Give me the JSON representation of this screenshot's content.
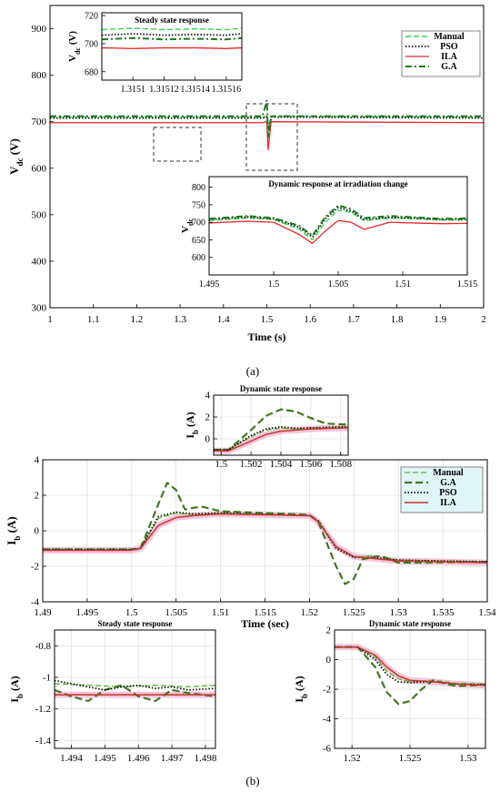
{
  "captions": {
    "a": "(a)",
    "b": "(b)"
  },
  "colors": {
    "Manual": "#39d353",
    "PSO": "#111111",
    "ILA": "#e8262a",
    "G.A": "#1e7a1e",
    "Manual_b": "#5bb52a",
    "GA_b": "#3f7a22",
    "PSO_b": "#111111",
    "ILA_b": "#c0392b"
  },
  "chart_data": [
    {
      "id": "a_main",
      "type": "line",
      "xlabel": "Time (s)",
      "ylabel": "V_dc (V)",
      "xlim": [
        1,
        2
      ],
      "ylim": [
        300,
        950
      ],
      "xticks": [
        1,
        1.1,
        1.2,
        1.3,
        1.4,
        1.5,
        1.6,
        1.7,
        1.8,
        1.9,
        2
      ],
      "xticklabels": [
        "1",
        "1.1",
        "1.2",
        "1.3",
        "1.4",
        "1.5",
        "1.6",
        "1.7",
        "1.8",
        "1.9",
        "2"
      ],
      "yticks": [
        300,
        400,
        500,
        600,
        700,
        800,
        900
      ],
      "legend": "top-right",
      "series": [
        {
          "name": "Manual",
          "x": [
            1,
            1.49,
            1.5,
            1.505,
            1.51,
            2
          ],
          "y": [
            710,
            710,
            712,
            690,
            712,
            710
          ]
        },
        {
          "name": "PSO",
          "x": [
            1,
            1.49,
            1.5,
            1.505,
            1.51,
            2
          ],
          "y": [
            708,
            708,
            710,
            680,
            710,
            708
          ]
        },
        {
          "name": "ILA",
          "x": [
            1,
            1.49,
            1.5,
            1.503,
            1.51,
            2
          ],
          "y": [
            698,
            698,
            700,
            640,
            700,
            698
          ]
        },
        {
          "name": "G.A",
          "x": [
            1,
            1.49,
            1.5,
            1.503,
            1.51,
            2
          ],
          "y": [
            712,
            712,
            745,
            665,
            712,
            712
          ]
        }
      ]
    },
    {
      "id": "a_inset_steady",
      "type": "line",
      "title": "Steady state response",
      "ylabel": "V_dc (V)",
      "xlim": [
        1.31508,
        1.31517
      ],
      "ylim": [
        674,
        722
      ],
      "xticks": [
        1.3151,
        1.31512,
        1.31514,
        1.31516
      ],
      "xticklabels": [
        "1.3151",
        "1.31512",
        "1.31514",
        "1.31516"
      ],
      "yticks": [
        680,
        700,
        720
      ],
      "series": [
        {
          "name": "Manual",
          "x": [
            1.31508,
            1.3151,
            1.31512,
            1.31514,
            1.31516,
            1.31517
          ],
          "y": [
            710,
            711,
            710,
            710.5,
            710,
            711
          ]
        },
        {
          "name": "PSO",
          "x": [
            1.31508,
            1.3151,
            1.31512,
            1.31514,
            1.31516,
            1.31517
          ],
          "y": [
            706,
            707,
            706,
            706.5,
            706,
            707
          ]
        },
        {
          "name": "ILA",
          "x": [
            1.31508,
            1.3151,
            1.31512,
            1.31514,
            1.31516,
            1.31517
          ],
          "y": [
            697,
            696.5,
            697,
            697,
            696.5,
            697
          ]
        },
        {
          "name": "G.A",
          "x": [
            1.31508,
            1.3151,
            1.31512,
            1.31514,
            1.31516,
            1.31517
          ],
          "y": [
            703,
            704,
            703,
            703.5,
            703,
            704
          ]
        }
      ]
    },
    {
      "id": "a_inset_dynamic",
      "type": "line",
      "title": "Dynamic response at irradiation change",
      "ylabel": "V_dc",
      "xlim": [
        1.495,
        1.515
      ],
      "ylim": [
        550,
        830
      ],
      "xticks": [
        1.495,
        1.5,
        1.505,
        1.51,
        1.515
      ],
      "xticklabels": [
        "1.495",
        "1.5",
        "1.505",
        "1.51",
        "1.515"
      ],
      "yticks": [
        600,
        650,
        700,
        750,
        800
      ],
      "series": [
        {
          "name": "Manual",
          "x": [
            1.495,
            1.498,
            1.5,
            1.502,
            1.503,
            1.504,
            1.505,
            1.506,
            1.507,
            1.509,
            1.511,
            1.513,
            1.515
          ],
          "y": [
            705,
            712,
            708,
            680,
            650,
            700,
            735,
            728,
            705,
            712,
            710,
            706,
            707
          ]
        },
        {
          "name": "PSO",
          "x": [
            1.495,
            1.498,
            1.5,
            1.502,
            1.503,
            1.504,
            1.505,
            1.506,
            1.507,
            1.509,
            1.511,
            1.513,
            1.515
          ],
          "y": [
            708,
            715,
            710,
            685,
            658,
            710,
            742,
            732,
            708,
            714,
            712,
            708,
            709
          ]
        },
        {
          "name": "ILA",
          "x": [
            1.495,
            1.498,
            1.5,
            1.502,
            1.503,
            1.504,
            1.505,
            1.506,
            1.507,
            1.509,
            1.511,
            1.513,
            1.515
          ],
          "y": [
            698,
            703,
            700,
            665,
            640,
            675,
            705,
            700,
            680,
            700,
            698,
            696,
            697
          ]
        },
        {
          "name": "G.A",
          "x": [
            1.495,
            1.498,
            1.5,
            1.502,
            1.503,
            1.504,
            1.505,
            1.506,
            1.507,
            1.509,
            1.511,
            1.513,
            1.515
          ],
          "y": [
            710,
            718,
            712,
            690,
            662,
            715,
            748,
            738,
            712,
            718,
            714,
            710,
            711
          ]
        }
      ]
    },
    {
      "id": "b_main",
      "type": "line",
      "xlabel": "Time (sec)",
      "ylabel": "I_b (A)",
      "xlim": [
        1.49,
        1.54
      ],
      "ylim": [
        -4,
        4
      ],
      "xticks": [
        1.49,
        1.495,
        1.5,
        1.505,
        1.51,
        1.515,
        1.52,
        1.525,
        1.53,
        1.535,
        1.54
      ],
      "xticklabels": [
        "1.49",
        "1.495",
        "1.5",
        "1.505",
        "1.51",
        "1.515",
        "1.52",
        "1.525",
        "1.53",
        "1.535",
        "1.54"
      ],
      "yticks": [
        -4,
        -2,
        0,
        2,
        4
      ],
      "legend": "top-right",
      "series": [
        {
          "name": "Manual",
          "x": [
            1.49,
            1.5,
            1.501,
            1.503,
            1.505,
            1.507,
            1.51,
            1.52,
            1.521,
            1.523,
            1.525,
            1.527,
            1.53,
            1.54
          ],
          "y": [
            -1.05,
            -1.05,
            -1.0,
            0.7,
            1.0,
            0.9,
            1.0,
            0.85,
            0.6,
            -0.9,
            -1.5,
            -1.4,
            -1.65,
            -1.75
          ]
        },
        {
          "name": "G.A",
          "x": [
            1.49,
            1.5,
            1.501,
            1.503,
            1.504,
            1.505,
            1.506,
            1.507,
            1.508,
            1.51,
            1.52,
            1.521,
            1.523,
            1.524,
            1.525,
            1.526,
            1.528,
            1.53,
            1.54
          ],
          "y": [
            -1.05,
            -1.05,
            -1.0,
            1.5,
            2.7,
            2.3,
            1.2,
            1.3,
            1.35,
            1.1,
            0.9,
            0.5,
            -2.0,
            -3.0,
            -2.7,
            -1.6,
            -1.4,
            -1.8,
            -1.75
          ]
        },
        {
          "name": "PSO",
          "x": [
            1.49,
            1.5,
            1.501,
            1.503,
            1.505,
            1.507,
            1.51,
            1.52,
            1.521,
            1.523,
            1.525,
            1.527,
            1.53,
            1.54
          ],
          "y": [
            -1.05,
            -1.05,
            -1.0,
            0.8,
            1.05,
            0.95,
            1.0,
            0.85,
            0.55,
            -1.0,
            -1.5,
            -1.5,
            -1.65,
            -1.75
          ]
        },
        {
          "name": "ILA",
          "x": [
            1.49,
            1.5,
            1.501,
            1.503,
            1.505,
            1.507,
            1.51,
            1.52,
            1.521,
            1.523,
            1.525,
            1.527,
            1.53,
            1.54
          ],
          "y": [
            -1.1,
            -1.1,
            -1.0,
            0.3,
            0.75,
            0.85,
            0.95,
            0.85,
            0.5,
            -0.9,
            -1.45,
            -1.55,
            -1.7,
            -1.8
          ]
        }
      ]
    },
    {
      "id": "b_inset_top",
      "type": "line",
      "title": "Dynamic state response",
      "ylabel": "I_b (A)",
      "xlim": [
        1.4995,
        1.5085
      ],
      "ylim": [
        -1.5,
        4
      ],
      "xticks": [
        1.5,
        1.502,
        1.504,
        1.506,
        1.508
      ],
      "xticklabels": [
        "1.5",
        "1.502",
        "1.504",
        "1.506",
        "1.508"
      ],
      "yticks": [
        0,
        2,
        4
      ],
      "series": [
        {
          "name": "Manual",
          "x": [
            1.4995,
            1.5005,
            1.502,
            1.503,
            1.504,
            1.505,
            1.506,
            1.507,
            1.5085
          ],
          "y": [
            -1.0,
            -1.0,
            0.2,
            0.8,
            1.0,
            0.9,
            1.0,
            1.0,
            1.1
          ]
        },
        {
          "name": "G.A",
          "x": [
            1.4995,
            1.5005,
            1.502,
            1.503,
            1.504,
            1.505,
            1.506,
            1.507,
            1.5085
          ],
          "y": [
            -1.0,
            -1.0,
            0.8,
            2.1,
            2.7,
            2.5,
            1.9,
            1.4,
            1.3
          ]
        },
        {
          "name": "PSO",
          "x": [
            1.4995,
            1.5005,
            1.502,
            1.503,
            1.504,
            1.505,
            1.506,
            1.507,
            1.5085
          ],
          "y": [
            -1.0,
            -1.0,
            0.3,
            0.9,
            1.1,
            0.95,
            1.0,
            1.05,
            1.1
          ]
        },
        {
          "name": "ILA",
          "x": [
            1.4995,
            1.5005,
            1.502,
            1.503,
            1.504,
            1.505,
            1.506,
            1.507,
            1.5085
          ],
          "y": [
            -1.1,
            -1.1,
            -0.2,
            0.4,
            0.7,
            0.8,
            0.9,
            0.95,
            1.0
          ]
        }
      ]
    },
    {
      "id": "b_inset_steady",
      "type": "line",
      "title": "Steady state response",
      "ylabel": "I_b (A)",
      "xlim": [
        1.4935,
        1.4983
      ],
      "ylim": [
        -1.45,
        -0.7
      ],
      "xticks": [
        1.494,
        1.495,
        1.496,
        1.497,
        1.498
      ],
      "xticklabels": [
        "1.494",
        "1.495",
        "1.496",
        "1.497",
        "1.498"
      ],
      "yticks": [
        -1.4,
        -1.2,
        -1.0,
        -0.8
      ],
      "series": [
        {
          "name": "Manual",
          "x": [
            1.4935,
            1.4945,
            1.4955,
            1.4965,
            1.4975,
            1.4983
          ],
          "y": [
            -1.04,
            -1.05,
            -1.06,
            -1.05,
            -1.06,
            -1.05
          ]
        },
        {
          "name": "G.A",
          "x": [
            1.4935,
            1.494,
            1.4945,
            1.495,
            1.4955,
            1.496,
            1.4965,
            1.497,
            1.4975,
            1.4983
          ],
          "y": [
            -1.08,
            -1.12,
            -1.15,
            -1.08,
            -1.05,
            -1.12,
            -1.15,
            -1.08,
            -1.1,
            -1.12
          ]
        },
        {
          "name": "PSO",
          "x": [
            1.4935,
            1.494,
            1.4945,
            1.495,
            1.4955,
            1.496,
            1.4965,
            1.497,
            1.4975,
            1.4983
          ],
          "y": [
            -1.02,
            -1.04,
            -1.06,
            -1.08,
            -1.06,
            -1.05,
            -1.07,
            -1.06,
            -1.08,
            -1.07
          ]
        },
        {
          "name": "ILA",
          "x": [
            1.4935,
            1.4945,
            1.4955,
            1.4965,
            1.4975,
            1.4983
          ],
          "y": [
            -1.11,
            -1.11,
            -1.11,
            -1.11,
            -1.11,
            -1.11
          ]
        }
      ]
    },
    {
      "id": "b_inset_right",
      "type": "line",
      "title": "Dynamic state response",
      "ylabel": "I_b (A)",
      "xlim": [
        1.5185,
        1.5315
      ],
      "ylim": [
        -6,
        2
      ],
      "xticks": [
        1.52,
        1.525,
        1.53
      ],
      "xticklabels": [
        "1.52",
        "1.525",
        "1.53"
      ],
      "yticks": [
        -6,
        -4,
        -2,
        0,
        2
      ],
      "series": [
        {
          "name": "Manual",
          "x": [
            1.5185,
            1.5205,
            1.522,
            1.523,
            1.524,
            1.525,
            1.527,
            1.529,
            1.5315
          ],
          "y": [
            0.85,
            0.85,
            0.2,
            -0.8,
            -1.3,
            -1.5,
            -1.4,
            -1.6,
            -1.65
          ]
        },
        {
          "name": "G.A",
          "x": [
            1.5185,
            1.5205,
            1.522,
            1.523,
            1.524,
            1.525,
            1.526,
            1.527,
            1.529,
            1.5315
          ],
          "y": [
            0.85,
            0.85,
            -0.5,
            -2.2,
            -3.0,
            -2.8,
            -2.0,
            -1.4,
            -1.8,
            -1.7
          ]
        },
        {
          "name": "PSO",
          "x": [
            1.5185,
            1.5205,
            1.522,
            1.523,
            1.524,
            1.525,
            1.527,
            1.529,
            1.5315
          ],
          "y": [
            0.85,
            0.85,
            0.0,
            -1.0,
            -1.5,
            -1.55,
            -1.5,
            -1.65,
            -1.7
          ]
        },
        {
          "name": "ILA",
          "x": [
            1.5185,
            1.5205,
            1.522,
            1.523,
            1.524,
            1.525,
            1.527,
            1.529,
            1.5315
          ],
          "y": [
            0.85,
            0.85,
            0.3,
            -0.5,
            -1.1,
            -1.4,
            -1.5,
            -1.65,
            -1.75
          ]
        }
      ]
    }
  ]
}
